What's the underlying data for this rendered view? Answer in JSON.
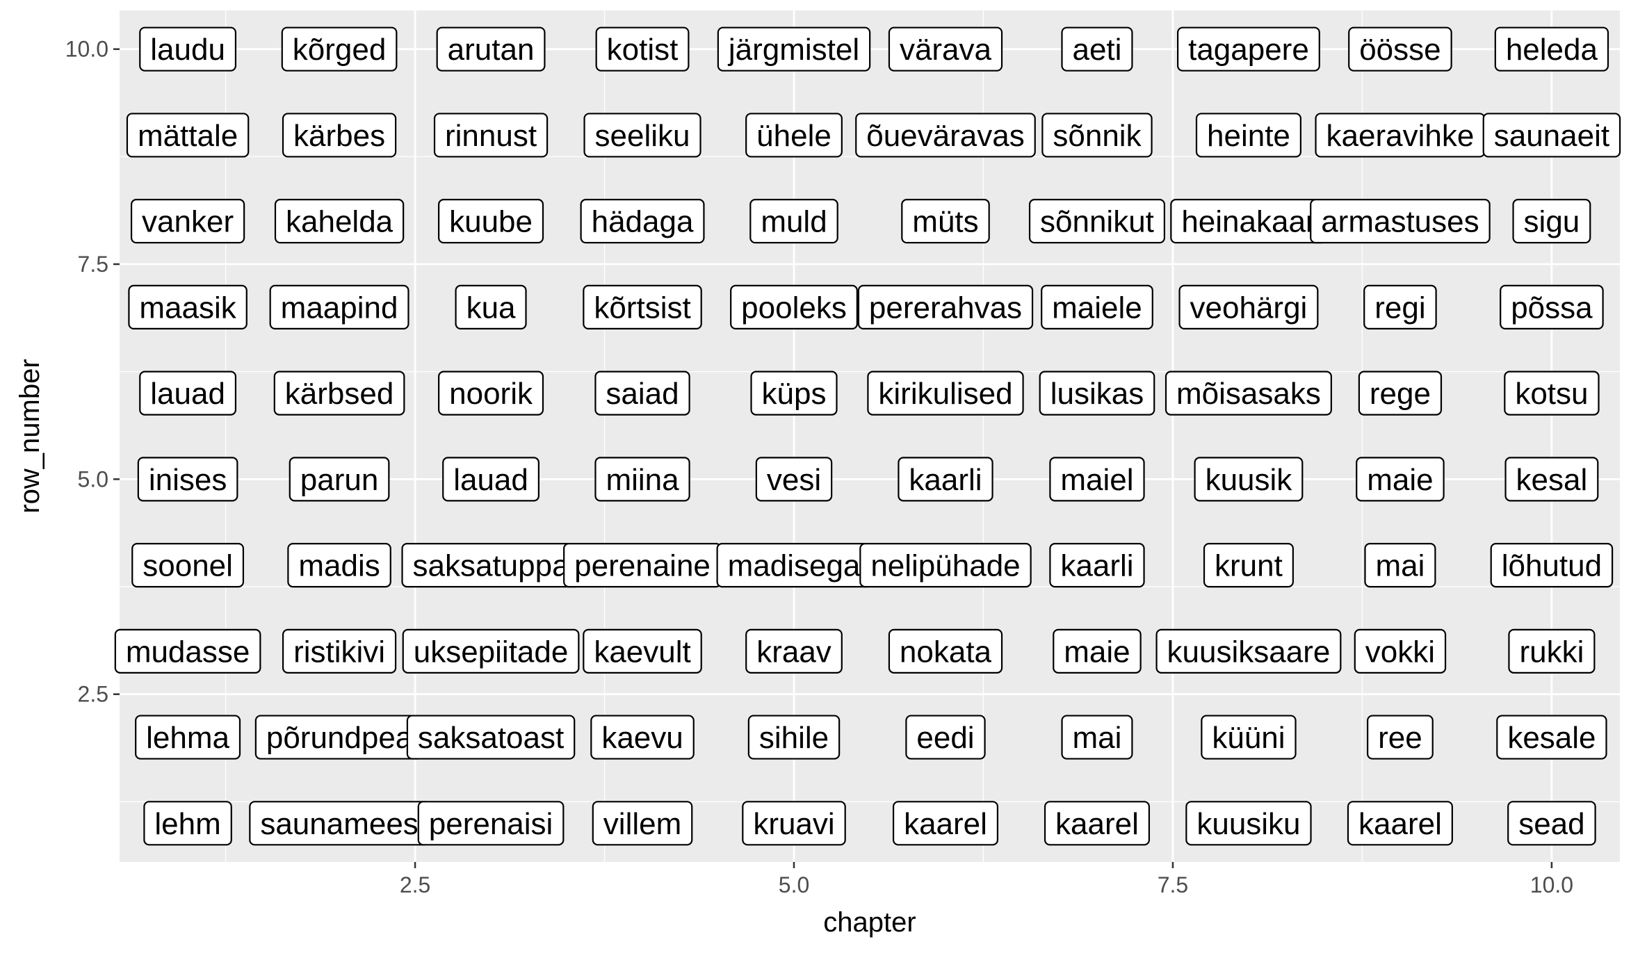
{
  "chart_data": {
    "type": "scatter",
    "xlabel": "chapter",
    "ylabel": "row_number",
    "xlim": [
      0.55,
      10.45
    ],
    "ylim": [
      0.55,
      10.45
    ],
    "x_ticks": [
      {
        "value": 2.5,
        "label": "2.5"
      },
      {
        "value": 5.0,
        "label": "5.0"
      },
      {
        "value": 7.5,
        "label": "7.5"
      },
      {
        "value": 10.0,
        "label": "10.0"
      }
    ],
    "y_ticks": [
      {
        "value": 2.5,
        "label": "2.5"
      },
      {
        "value": 5.0,
        "label": "5.0"
      },
      {
        "value": 7.5,
        "label": "7.5"
      },
      {
        "value": 10.0,
        "label": "10.0"
      }
    ],
    "grid": true,
    "background": "#ebebeb",
    "gridColor": "#ffffff",
    "columns": [
      {
        "chapter": 1,
        "words": [
          "lehm",
          "lehma",
          "mudasse",
          "soonel",
          "inises",
          "lauad",
          "maasik",
          "vanker",
          "mättale",
          "laudu"
        ]
      },
      {
        "chapter": 2,
        "words": [
          "saunamees",
          "põrundpea",
          "ristikivi",
          "madis",
          "parun",
          "kärbsed",
          "maapind",
          "kahelda",
          "kärbes",
          "kõrged"
        ]
      },
      {
        "chapter": 3,
        "words": [
          "perenaisi",
          "saksatoast",
          "uksepiitade",
          "saksatuppa",
          "lauad",
          "noorik",
          "kua",
          "kuube",
          "rinnust",
          "arutan"
        ]
      },
      {
        "chapter": 4,
        "words": [
          "villem",
          "kaevu",
          "kaevult",
          "perenaine",
          "miina",
          "saiad",
          "kõrtsist",
          "hädaga",
          "seeliku",
          "kotist"
        ]
      },
      {
        "chapter": 5,
        "words": [
          "kruavi",
          "sihile",
          "kraav",
          "madisega",
          "vesi",
          "küps",
          "pooleks",
          "muld",
          "ühele",
          "järgmistel"
        ]
      },
      {
        "chapter": 6,
        "words": [
          "kaarel",
          "eedi",
          "nokata",
          "nelipühade",
          "kaarli",
          "kirikulised",
          "pererahvas",
          "müts",
          "õueväravas",
          "värava"
        ]
      },
      {
        "chapter": 7,
        "words": [
          "kaarel",
          "mai",
          "maie",
          "kaarli",
          "maiel",
          "lusikas",
          "maiele",
          "sõnnikut",
          "sõnnik",
          "aeti"
        ]
      },
      {
        "chapter": 8,
        "words": [
          "kuusiku",
          "küüni",
          "kuusiksaare",
          "krunt",
          "kuusik",
          "mõisasaks",
          "veohärgi",
          "heinakaar",
          "heinte",
          "tagapere"
        ]
      },
      {
        "chapter": 9,
        "words": [
          "kaarel",
          "ree",
          "vokki",
          "mai",
          "maie",
          "rege",
          "regi",
          "armastuses",
          "kaeravihke",
          "öösse"
        ]
      },
      {
        "chapter": 10,
        "words": [
          "sead",
          "kesale",
          "rukki",
          "lõhutud",
          "kesal",
          "kotsu",
          "põssa",
          "sigu",
          "saunaeit",
          "heleda"
        ]
      }
    ]
  }
}
